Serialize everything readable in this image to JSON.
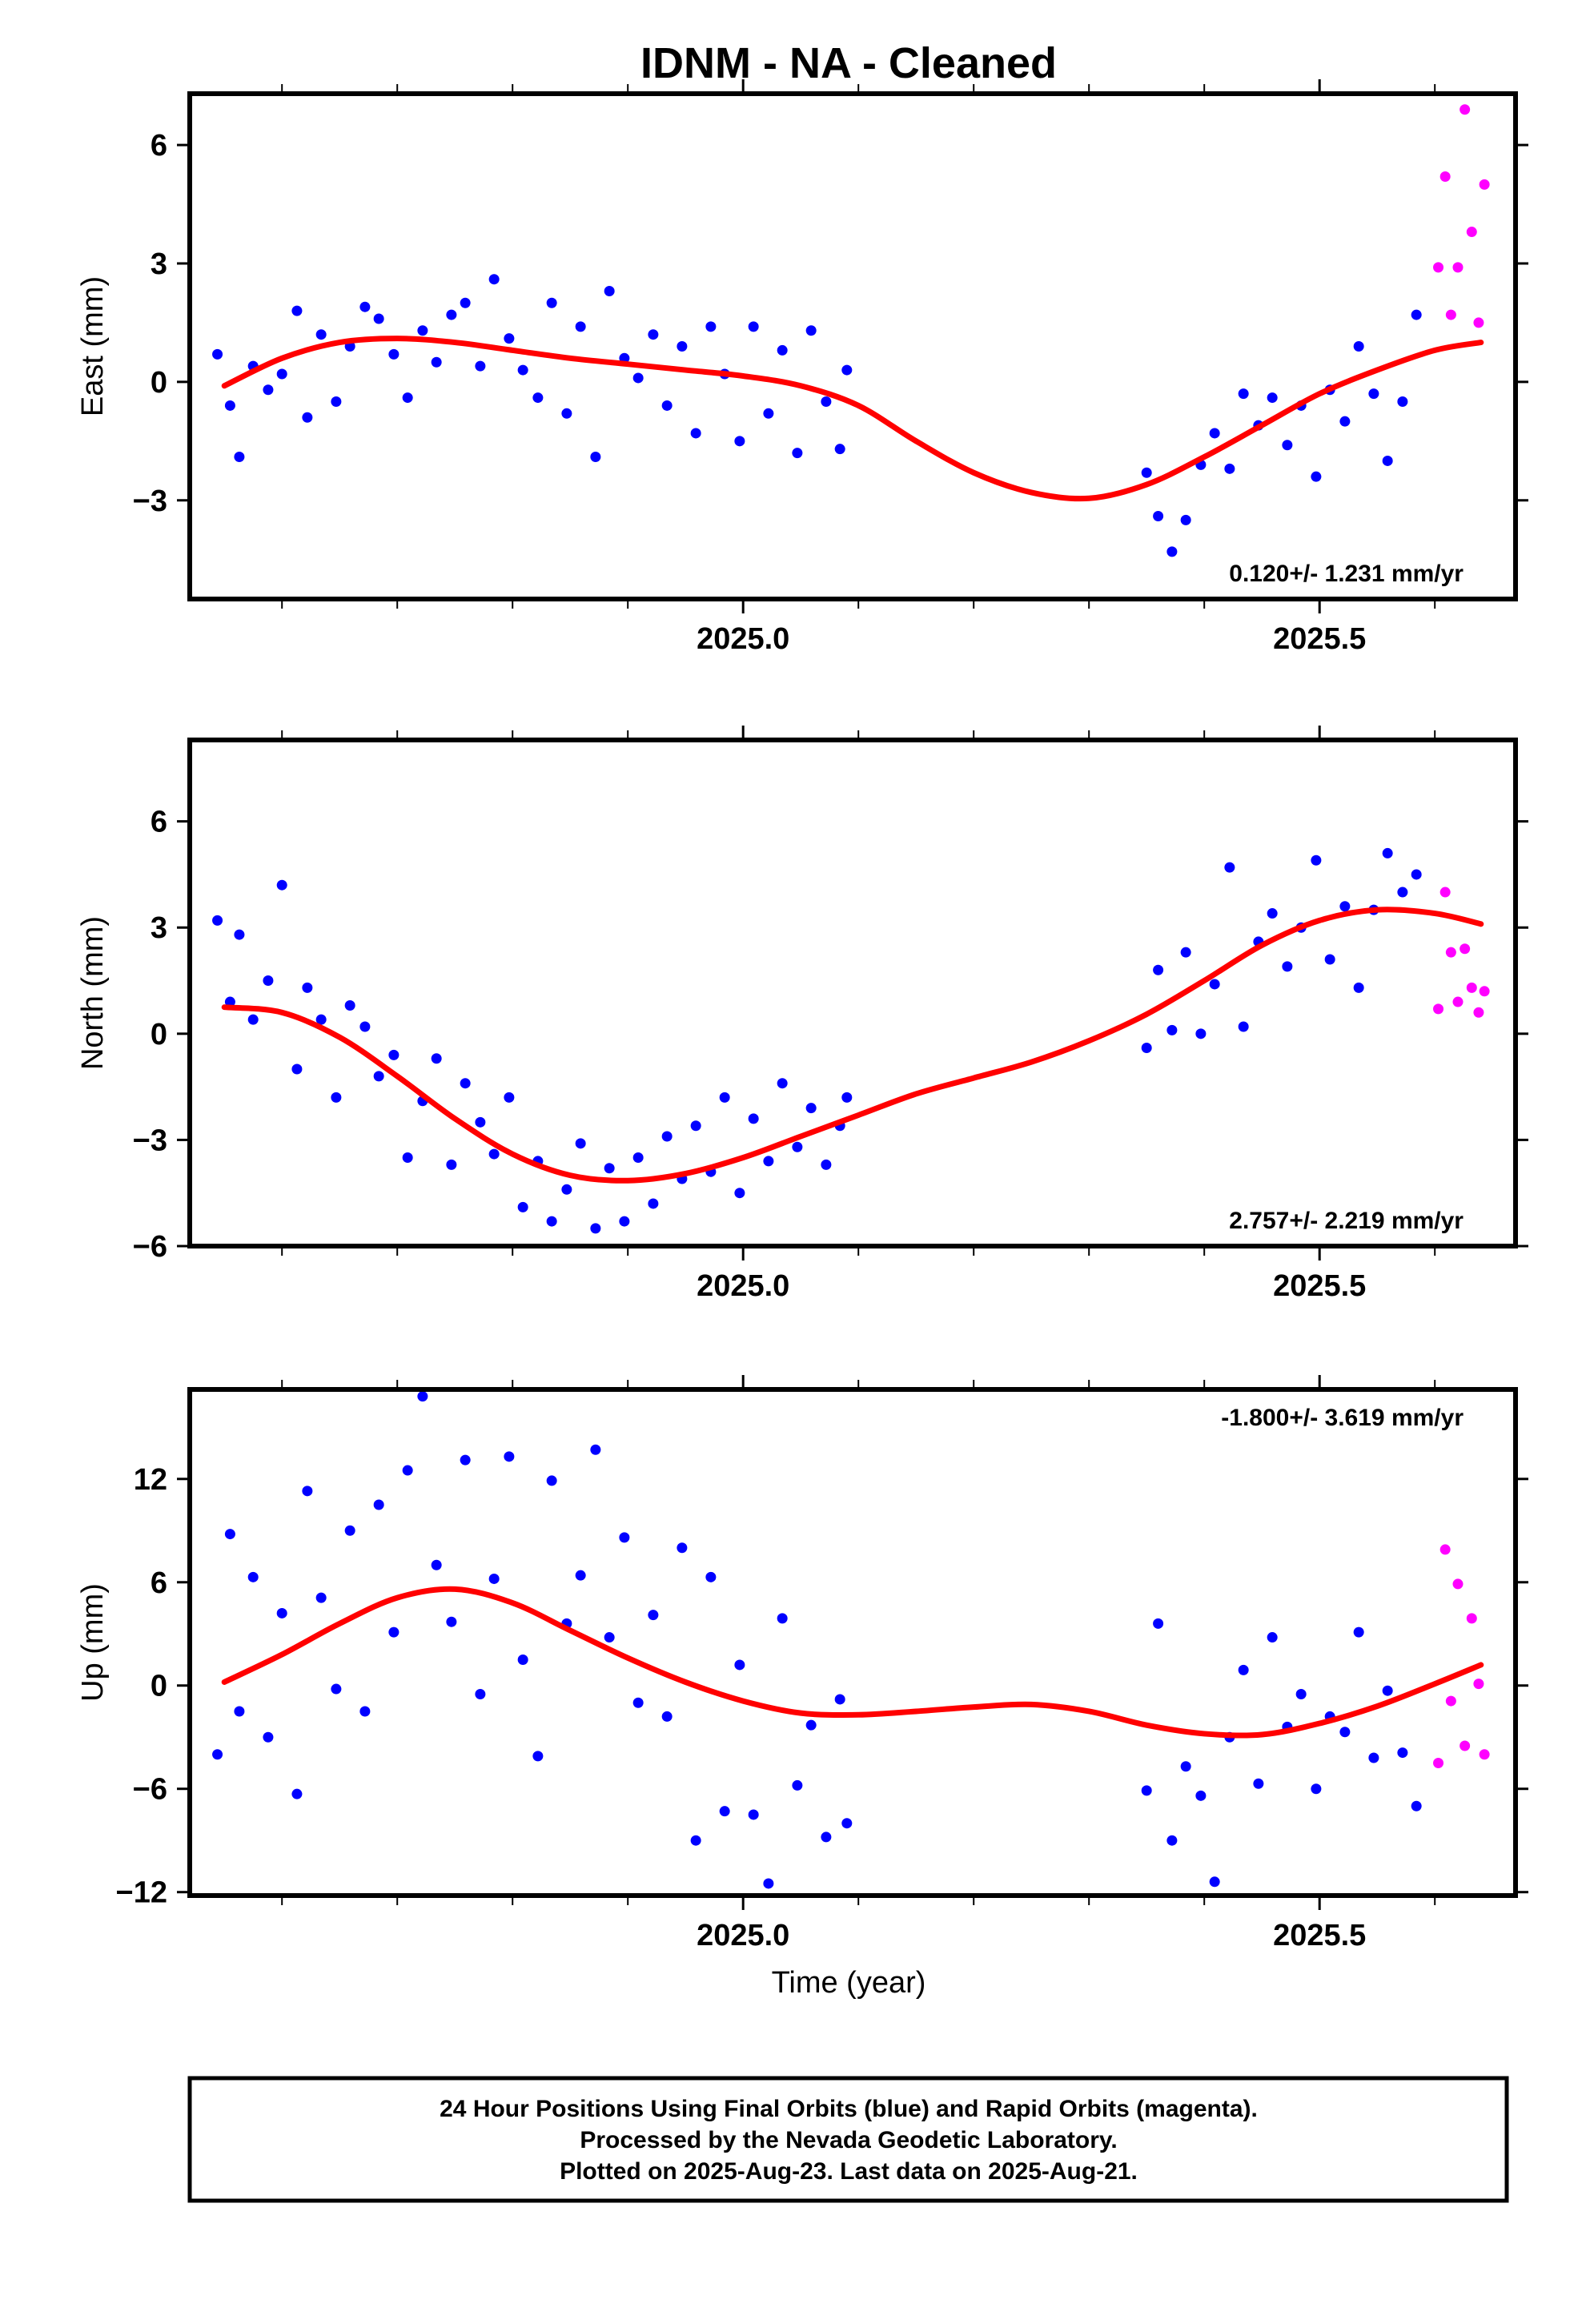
{
  "title": "IDNM  - NA - Cleaned",
  "xlabel": "Time (year)",
  "footer": {
    "line1": "24 Hour Positions Using Final Orbits (blue) and Rapid Orbits (magenta).",
    "line2": "Processed by the Nevada Geodetic Laboratory.",
    "line3": "Plotted on 2025-Aug-23. Last data on 2025-Aug-21."
  },
  "colors": {
    "final": "#0000ff",
    "rapid": "#ff00ff",
    "model": "#ff0000"
  },
  "chart_data": [
    {
      "type": "scatter",
      "title": "IDNM  - NA - Cleaned",
      "ylabel": "East (mm)",
      "xlim": [
        2024.52,
        2025.67
      ],
      "ylim": [
        -5.5,
        7.3
      ],
      "xticks": [
        2025.0,
        2025.5
      ],
      "xtick_labels": [
        "2025.0",
        "2025.5"
      ],
      "yticks": [
        -3,
        0,
        3,
        6
      ],
      "ytick_labels": [
        "−3",
        "0",
        "3",
        "6"
      ],
      "rate_label": "0.120+/- 1.231 mm/yr",
      "rate_position": "bottom-right",
      "series": [
        {
          "kind": "final",
          "x": [
            2024.544,
            2024.555,
            2024.563,
            2024.575,
            2024.588,
            2024.6,
            2024.613,
            2024.622,
            2024.634,
            2024.647,
            2024.659,
            2024.672,
            2024.684,
            2024.697,
            2024.709,
            2024.722,
            2024.734,
            2024.747,
            2024.759,
            2024.772,
            2024.784,
            2024.797,
            2024.809,
            2024.822,
            2024.834,
            2024.847,
            2024.859,
            2024.872,
            2024.884,
            2024.897,
            2024.909,
            2024.922,
            2024.934,
            2024.947,
            2024.959,
            2024.972,
            2024.984,
            2024.997,
            2025.009,
            2025.022,
            2025.034,
            2025.047,
            2025.059,
            2025.072,
            2025.084,
            2025.09,
            2025.35,
            2025.36,
            2025.372,
            2025.384,
            2025.397,
            2025.409,
            2025.422,
            2025.434,
            2025.447,
            2025.459,
            2025.472,
            2025.484,
            2025.497,
            2025.509,
            2025.522,
            2025.534,
            2025.547,
            2025.559,
            2025.572,
            2025.584
          ],
          "y": [
            0.7,
            -0.6,
            -1.9,
            0.4,
            -0.2,
            0.2,
            1.8,
            -0.9,
            1.2,
            -0.5,
            0.9,
            1.9,
            1.6,
            0.7,
            -0.4,
            1.3,
            0.5,
            1.7,
            2.0,
            0.4,
            2.6,
            1.1,
            0.3,
            -0.4,
            2.0,
            -0.8,
            1.4,
            -1.9,
            2.3,
            0.6,
            0.1,
            1.2,
            -0.6,
            0.9,
            -1.3,
            1.4,
            0.2,
            -1.5,
            1.4,
            -0.8,
            0.8,
            -1.8,
            1.3,
            -0.5,
            -1.7,
            0.3,
            -2.3,
            -3.4,
            -4.3,
            -3.5,
            -2.1,
            -1.3,
            -2.2,
            -0.3,
            -1.1,
            -0.4,
            -1.6,
            -0.6,
            -2.4,
            -0.2,
            -1.0,
            0.9,
            -0.3,
            -2.0,
            -0.5,
            1.7
          ]
        },
        {
          "kind": "rapid",
          "x": [
            2025.603,
            2025.609,
            2025.614,
            2025.62,
            2025.626,
            2025.632,
            2025.638,
            2025.643
          ],
          "y": [
            2.9,
            5.2,
            1.7,
            2.9,
            6.9,
            3.8,
            1.5,
            5.0
          ]
        },
        {
          "kind": "model",
          "x": [
            2024.55,
            2024.6,
            2024.65,
            2024.7,
            2024.75,
            2024.8,
            2024.85,
            2024.9,
            2024.95,
            2025.0,
            2025.05,
            2025.1,
            2025.15,
            2025.2,
            2025.25,
            2025.3,
            2025.35,
            2025.4,
            2025.45,
            2025.5,
            2025.55,
            2025.6,
            2025.64
          ],
          "y": [
            -0.1,
            0.6,
            1.0,
            1.1,
            1.0,
            0.8,
            0.6,
            0.45,
            0.3,
            0.15,
            -0.1,
            -0.6,
            -1.5,
            -2.3,
            -2.8,
            -2.95,
            -2.6,
            -1.9,
            -1.1,
            -0.3,
            0.3,
            0.8,
            1.0
          ]
        }
      ]
    },
    {
      "type": "scatter",
      "title": "",
      "ylabel": "North (mm)",
      "xlim": [
        2024.52,
        2025.67
      ],
      "ylim": [
        -6.0,
        8.3
      ],
      "xticks": [
        2025.0,
        2025.5
      ],
      "xtick_labels": [
        "2025.0",
        "2025.5"
      ],
      "yticks": [
        -6,
        -3,
        0,
        3,
        6
      ],
      "ytick_labels": [
        "−6",
        "−3",
        "0",
        "3",
        "6"
      ],
      "rate_label": "2.757+/- 2.219 mm/yr",
      "rate_position": "bottom-right",
      "series": [
        {
          "kind": "final",
          "x": [
            2024.544,
            2024.555,
            2024.563,
            2024.575,
            2024.588,
            2024.6,
            2024.613,
            2024.622,
            2024.634,
            2024.647,
            2024.659,
            2024.672,
            2024.684,
            2024.697,
            2024.709,
            2024.722,
            2024.734,
            2024.747,
            2024.759,
            2024.772,
            2024.784,
            2024.797,
            2024.809,
            2024.822,
            2024.834,
            2024.847,
            2024.859,
            2024.872,
            2024.884,
            2024.897,
            2024.909,
            2024.922,
            2024.934,
            2024.947,
            2024.959,
            2024.972,
            2024.984,
            2024.997,
            2025.009,
            2025.022,
            2025.034,
            2025.047,
            2025.059,
            2025.072,
            2025.084,
            2025.09,
            2025.35,
            2025.36,
            2025.372,
            2025.384,
            2025.397,
            2025.409,
            2025.422,
            2025.434,
            2025.447,
            2025.459,
            2025.472,
            2025.484,
            2025.497,
            2025.509,
            2025.522,
            2025.534,
            2025.547,
            2025.559,
            2025.572,
            2025.584
          ],
          "y": [
            3.2,
            0.9,
            2.8,
            0.4,
            1.5,
            4.2,
            -1.0,
            1.3,
            0.4,
            -1.8,
            0.8,
            0.2,
            -1.2,
            -0.6,
            -3.5,
            -1.9,
            -0.7,
            -3.7,
            -1.4,
            -2.5,
            -3.4,
            -1.8,
            -4.9,
            -3.6,
            -5.3,
            -4.4,
            -3.1,
            -5.5,
            -3.8,
            -5.3,
            -3.5,
            -4.8,
            -2.9,
            -4.1,
            -2.6,
            -3.9,
            -1.8,
            -4.5,
            -2.4,
            -3.6,
            -1.4,
            -3.2,
            -2.1,
            -3.7,
            -2.6,
            -1.8,
            -0.4,
            1.8,
            0.1,
            2.3,
            0.0,
            1.4,
            4.7,
            0.2,
            2.6,
            3.4,
            1.9,
            3.0,
            4.9,
            2.1,
            3.6,
            1.3,
            3.5,
            5.1,
            4.0,
            4.5
          ]
        },
        {
          "kind": "rapid",
          "x": [
            2025.603,
            2025.609,
            2025.614,
            2025.62,
            2025.626,
            2025.632,
            2025.638,
            2025.643
          ],
          "y": [
            0.7,
            4.0,
            2.3,
            0.9,
            2.4,
            1.3,
            0.6,
            1.2
          ]
        },
        {
          "kind": "model",
          "x": [
            2024.55,
            2024.6,
            2024.65,
            2024.7,
            2024.75,
            2024.8,
            2024.85,
            2024.9,
            2024.95,
            2025.0,
            2025.05,
            2025.1,
            2025.15,
            2025.2,
            2025.25,
            2025.3,
            2025.35,
            2025.4,
            2025.45,
            2025.5,
            2025.55,
            2025.6,
            2025.64
          ],
          "y": [
            0.75,
            0.6,
            -0.1,
            -1.2,
            -2.4,
            -3.4,
            -4.0,
            -4.15,
            -3.95,
            -3.5,
            -2.9,
            -2.3,
            -1.7,
            -1.25,
            -0.8,
            -0.2,
            0.55,
            1.5,
            2.5,
            3.2,
            3.5,
            3.4,
            3.1
          ]
        }
      ]
    },
    {
      "type": "scatter",
      "title": "",
      "ylabel": "Up (mm)",
      "xlabel": "Time (year)",
      "xlim": [
        2024.52,
        2025.67
      ],
      "ylim": [
        -12.2,
        17.2
      ],
      "xticks": [
        2025.0,
        2025.5
      ],
      "xtick_labels": [
        "2025.0",
        "2025.5"
      ],
      "yticks": [
        -12,
        -6,
        0,
        6,
        12
      ],
      "ytick_labels": [
        "−12",
        "−6",
        "0",
        "6",
        "12"
      ],
      "rate_label": "-1.800+/- 3.619 mm/yr",
      "rate_position": "top-right",
      "series": [
        {
          "kind": "final",
          "x": [
            2024.544,
            2024.555,
            2024.563,
            2024.575,
            2024.588,
            2024.6,
            2024.613,
            2024.622,
            2024.634,
            2024.647,
            2024.659,
            2024.672,
            2024.684,
            2024.697,
            2024.709,
            2024.722,
            2024.734,
            2024.747,
            2024.759,
            2024.772,
            2024.784,
            2024.797,
            2024.809,
            2024.822,
            2024.834,
            2024.847,
            2024.859,
            2024.872,
            2024.884,
            2024.897,
            2024.909,
            2024.922,
            2024.934,
            2024.947,
            2024.959,
            2024.972,
            2024.984,
            2024.997,
            2025.009,
            2025.022,
            2025.034,
            2025.047,
            2025.059,
            2025.072,
            2025.084,
            2025.09,
            2025.35,
            2025.36,
            2025.372,
            2025.384,
            2025.397,
            2025.409,
            2025.422,
            2025.434,
            2025.447,
            2025.459,
            2025.472,
            2025.484,
            2025.497,
            2025.509,
            2025.522,
            2025.534,
            2025.547,
            2025.559,
            2025.572,
            2025.584
          ],
          "y": [
            -4.0,
            8.8,
            -1.5,
            6.3,
            -3.0,
            4.2,
            -6.3,
            11.3,
            5.1,
            -0.2,
            9.0,
            -1.5,
            10.5,
            3.1,
            12.5,
            16.8,
            7.0,
            3.7,
            13.1,
            -0.5,
            6.2,
            13.3,
            1.5,
            -4.1,
            11.9,
            3.6,
            6.4,
            13.7,
            2.8,
            8.6,
            -1.0,
            4.1,
            -1.8,
            8.0,
            -9.0,
            6.3,
            -7.3,
            1.2,
            -7.5,
            -11.5,
            3.9,
            -5.8,
            -2.3,
            -8.8,
            -0.8,
            -8.0,
            -6.1,
            3.6,
            -9.0,
            -4.7,
            -6.4,
            -11.4,
            -3.0,
            0.9,
            -5.7,
            2.8,
            -2.4,
            -0.5,
            -6.0,
            -1.8,
            -2.7,
            3.1,
            -4.2,
            -0.3,
            -3.9,
            -7.0
          ]
        },
        {
          "kind": "rapid",
          "x": [
            2025.603,
            2025.609,
            2025.614,
            2025.62,
            2025.626,
            2025.632,
            2025.638,
            2025.643
          ],
          "y": [
            -4.5,
            7.9,
            -0.9,
            5.9,
            -3.5,
            3.9,
            0.1,
            -4.0
          ]
        },
        {
          "kind": "model",
          "x": [
            2024.55,
            2024.6,
            2024.65,
            2024.7,
            2024.75,
            2024.8,
            2024.85,
            2024.9,
            2024.95,
            2025.0,
            2025.05,
            2025.1,
            2025.15,
            2025.2,
            2025.25,
            2025.3,
            2025.35,
            2025.4,
            2025.45,
            2025.5,
            2025.55,
            2025.6,
            2025.64
          ],
          "y": [
            0.2,
            1.8,
            3.6,
            5.1,
            5.6,
            4.8,
            3.2,
            1.6,
            0.2,
            -0.9,
            -1.6,
            -1.7,
            -1.5,
            -1.25,
            -1.1,
            -1.5,
            -2.3,
            -2.8,
            -2.85,
            -2.2,
            -1.2,
            0.1,
            1.2
          ]
        }
      ]
    }
  ]
}
